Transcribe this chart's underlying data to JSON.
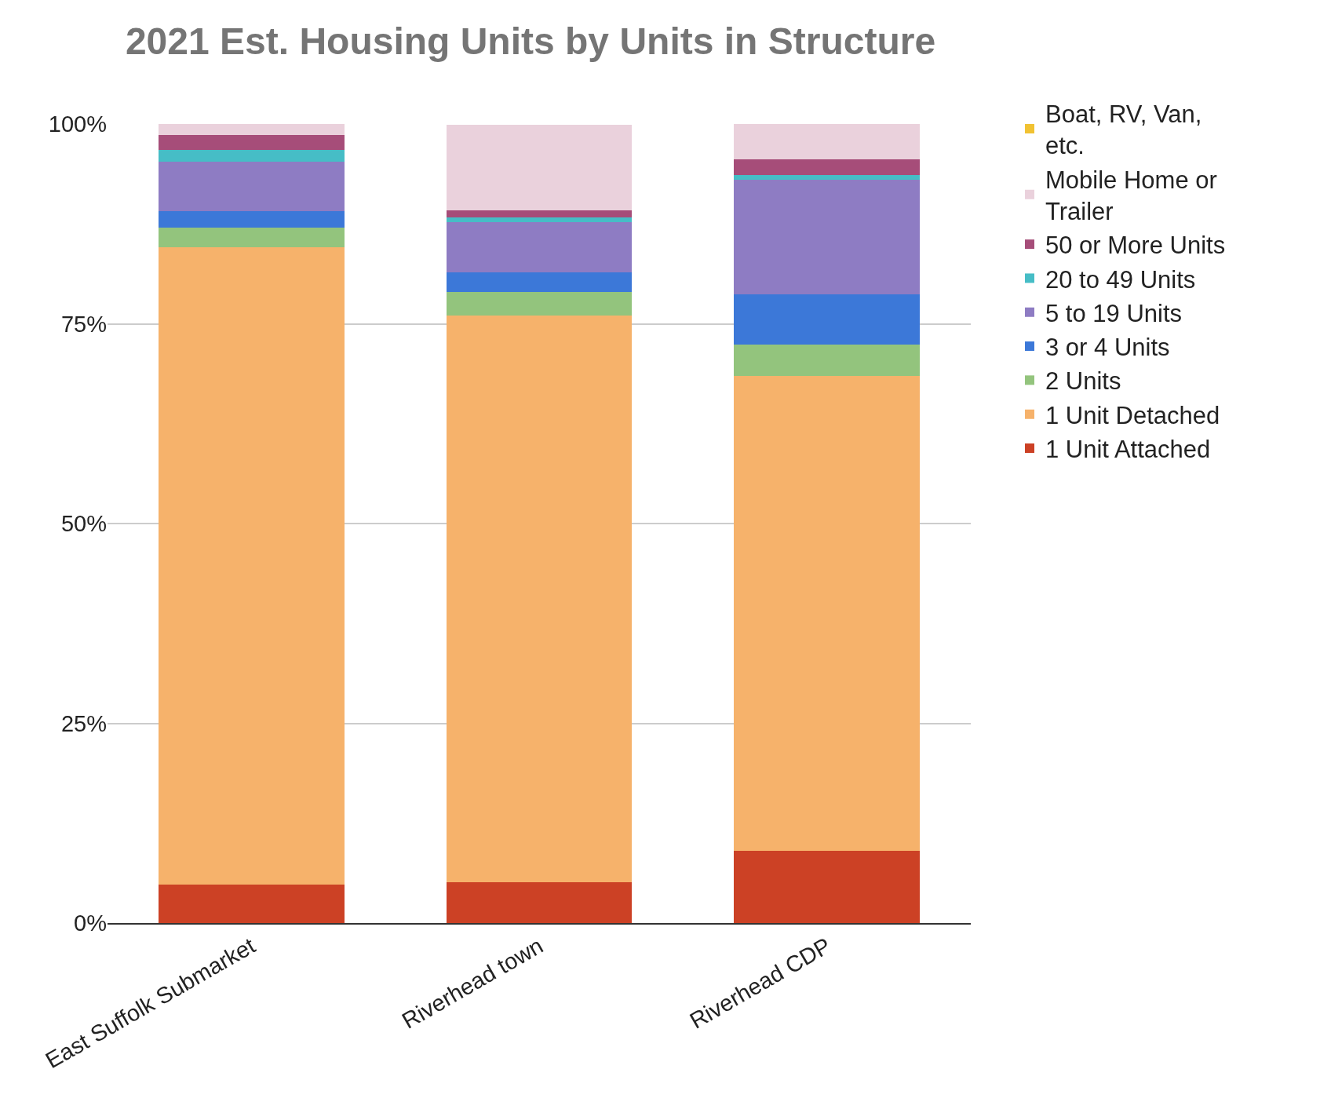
{
  "chart_data": {
    "type": "bar",
    "stacked": true,
    "title": "2021 Est. Housing Units by Units in Structure",
    "categories": [
      "East Suffolk Submarket",
      "Riverhead town",
      "Riverhead CDP"
    ],
    "series": [
      {
        "name": "1 Unit Attached",
        "color": "#cc4125",
        "values": [
          4.8,
          5.1,
          9.0
        ]
      },
      {
        "name": "1 Unit Detached",
        "color": "#f6b26b",
        "values": [
          79.8,
          70.9,
          59.5
        ]
      },
      {
        "name": "2 Units",
        "color": "#93c47d",
        "values": [
          2.4,
          3.0,
          3.9
        ]
      },
      {
        "name": "3 or 4 Units",
        "color": "#3c78d8",
        "values": [
          2.1,
          2.4,
          6.3
        ]
      },
      {
        "name": "5 to 19 Units",
        "color": "#8e7cc3",
        "values": [
          6.2,
          6.3,
          14.3
        ]
      },
      {
        "name": "20 to 49 Units",
        "color": "#46bdc6",
        "values": [
          1.5,
          0.6,
          0.6
        ]
      },
      {
        "name": "50 or More Units",
        "color": "#a64d79",
        "values": [
          1.8,
          0.9,
          2.0
        ]
      },
      {
        "name": "Mobile Home or Trailer",
        "color": "#ead1dc",
        "values": [
          1.4,
          10.7,
          4.4
        ]
      },
      {
        "name": "Boat, RV, Van, etc.",
        "color": "#f1c232",
        "values": [
          0,
          0,
          0
        ]
      }
    ],
    "ylim": [
      0,
      100
    ],
    "yticks": [
      {
        "value": 0,
        "label": "0%"
      },
      {
        "value": 25,
        "label": "25%"
      },
      {
        "value": 50,
        "label": "50%"
      },
      {
        "value": 75,
        "label": "75%"
      },
      {
        "value": 100,
        "label": "100%"
      }
    ],
    "grid": "y",
    "legend": "right"
  }
}
